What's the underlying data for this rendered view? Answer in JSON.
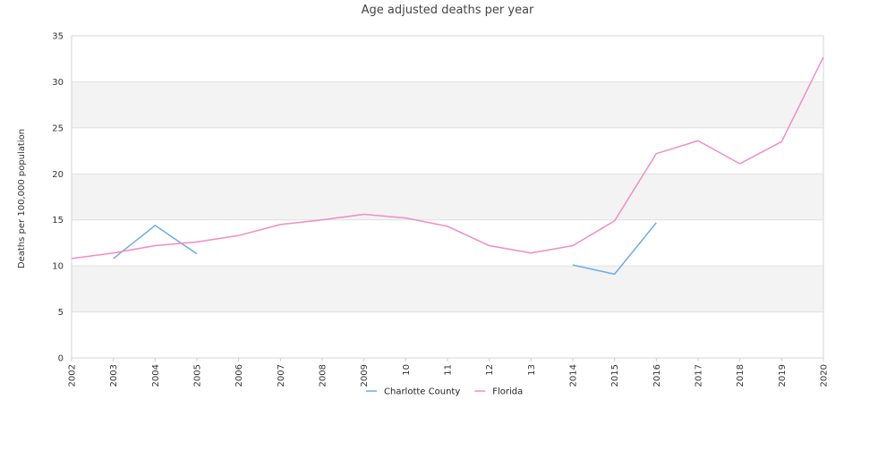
{
  "chart_data": {
    "type": "line",
    "title": "Age adjusted deaths per year",
    "xlabel": "",
    "ylabel": "Deaths per 100,000 population",
    "x": [
      "2002",
      "2003",
      "2004",
      "2005",
      "2006",
      "2007",
      "2008",
      "2009",
      "2010",
      "2011",
      "2012",
      "2013",
      "2014",
      "2015",
      "2016",
      "2017",
      "2018",
      "2019",
      "2020"
    ],
    "x_tick_labels": [
      "2002",
      "2003",
      "2004",
      "2005",
      "2006",
      "2007",
      "2008",
      "2009",
      "10",
      "11",
      "12",
      "13",
      "2014",
      "2015",
      "2016",
      "2017",
      "2018",
      "2019",
      "2020"
    ],
    "ylim": [
      0,
      35
    ],
    "yticks": [
      0,
      5,
      10,
      15,
      20,
      25,
      30,
      35
    ],
    "grid": true,
    "legend_position": "bottom-center",
    "series": [
      {
        "name": "Charlotte County",
        "color": "#6aaee6",
        "values": [
          null,
          10.8,
          14.4,
          11.3,
          null,
          null,
          null,
          null,
          null,
          null,
          null,
          null,
          10.1,
          9.1,
          14.7,
          null,
          null,
          null,
          null
        ]
      },
      {
        "name": "Florida",
        "color": "#f28cc4",
        "values": [
          10.8,
          11.4,
          12.2,
          12.6,
          13.3,
          14.5,
          15.0,
          15.6,
          15.2,
          14.3,
          12.2,
          11.4,
          12.2,
          14.9,
          22.2,
          23.6,
          21.1,
          23.5,
          32.7
        ]
      }
    ]
  }
}
